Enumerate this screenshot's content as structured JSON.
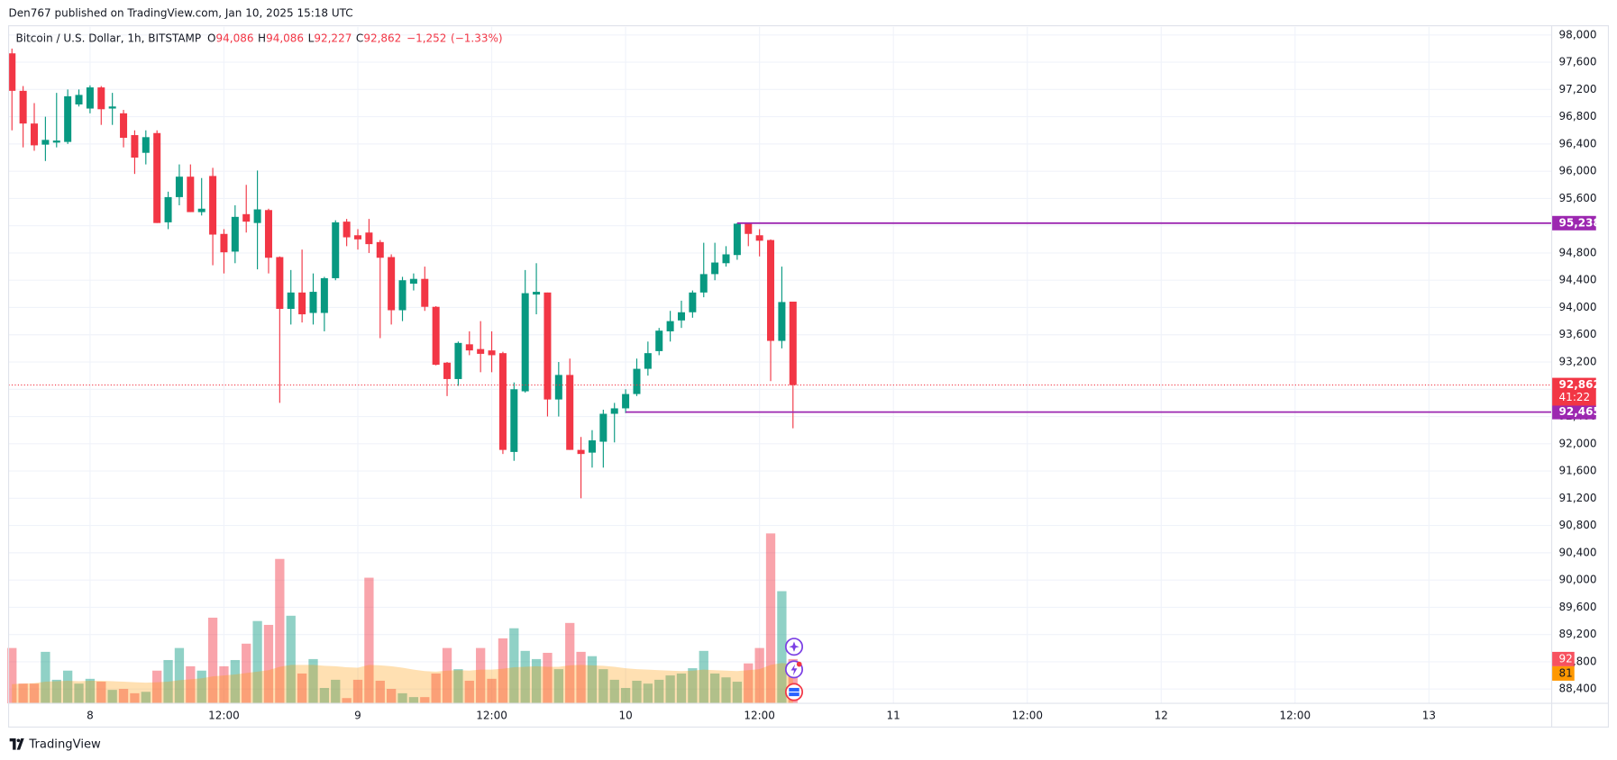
{
  "header": {
    "published": "Den767 published on TradingView.com, Jan 10, 2025 15:18 UTC"
  },
  "chart_data": {
    "type": "candlestick",
    "legend": {
      "symbol": "Bitcoin / U.S. Dollar, 1h, BITSTAMP",
      "fields": [
        {
          "key": "O",
          "value": 94086,
          "label": "94,086"
        },
        {
          "key": "H",
          "value": 94086,
          "label": "94,086"
        },
        {
          "key": "L",
          "value": 92227,
          "label": "92,227"
        },
        {
          "key": "C",
          "value": 92862,
          "label": "92,862"
        }
      ],
      "change": {
        "value": -1252,
        "label": "−1,252"
      },
      "change_pct": {
        "value": -1.33,
        "label": "(−1.33%)"
      }
    },
    "up_color": "#089981",
    "down_color": "#f23645",
    "open": [
      97730,
      97180,
      96700,
      96390,
      96420,
      96430,
      96980,
      96920,
      97230,
      96920,
      96850,
      96530,
      96270,
      96560,
      95250,
      95620,
      95920,
      95400,
      95930,
      95080,
      94820,
      95370,
      95240,
      95430,
      94740,
      93980,
      94220,
      93920,
      93920,
      94430,
      95260,
      95060,
      95100,
      94960,
      94740,
      93960,
      94350,
      94420,
      94010,
      93190,
      92950,
      93460,
      93390,
      93370,
      93330,
      91880,
      92770,
      94190,
      94220,
      92650,
      93010,
      91910,
      91870,
      92030,
      92440,
      92520,
      92730,
      93100,
      93360,
      93650,
      93810,
      93930,
      94220,
      94490,
      94650,
      94770,
      95230,
      95060,
      94990,
      93510,
      94086
    ],
    "high": [
      97800,
      97250,
      97000,
      96800,
      97150,
      97200,
      97200,
      97260,
      97250,
      97150,
      96900,
      96600,
      96600,
      96600,
      95700,
      96100,
      96100,
      95900,
      96050,
      95150,
      95500,
      95800,
      96010,
      95450,
      94750,
      94550,
      94850,
      94500,
      94450,
      95280,
      95300,
      95150,
      95300,
      94990,
      94780,
      94450,
      94500,
      94600,
      94020,
      93200,
      93500,
      93650,
      93800,
      93650,
      93350,
      92900,
      94550,
      94650,
      94220,
      93200,
      93250,
      92100,
      92200,
      92500,
      92600,
      92800,
      93250,
      93500,
      93700,
      93950,
      94100,
      94250,
      94950,
      94950,
      94900,
      95240,
      95240,
      95150,
      95000,
      94600,
      94086
    ],
    "low": [
      96600,
      96350,
      96300,
      96150,
      96350,
      96400,
      96950,
      96850,
      96680,
      96680,
      96350,
      95960,
      96100,
      95240,
      95150,
      95500,
      95400,
      95350,
      94620,
      94500,
      94650,
      95100,
      94560,
      94500,
      92600,
      93750,
      93780,
      93750,
      93650,
      94400,
      94900,
      94850,
      94800,
      93550,
      93750,
      93800,
      94250,
      93950,
      93150,
      92700,
      92850,
      93300,
      93050,
      93050,
      91850,
      91750,
      92750,
      93900,
      92400,
      92400,
      91910,
      91200,
      91650,
      91650,
      92020,
      92450,
      92700,
      93000,
      93300,
      93500,
      93700,
      93850,
      94150,
      94400,
      94600,
      94700,
      94900,
      94750,
      92920,
      93400,
      92227
    ],
    "close": [
      97180,
      96700,
      96380,
      96460,
      96450,
      97100,
      97120,
      97230,
      96910,
      96950,
      96490,
      96200,
      96500,
      95240,
      95620,
      95920,
      95400,
      95450,
      95070,
      94810,
      95330,
      95260,
      95440,
      94730,
      93980,
      94220,
      93900,
      94230,
      94430,
      95250,
      95030,
      95000,
      94930,
      94730,
      93960,
      94400,
      94420,
      94010,
      93160,
      92950,
      93480,
      93370,
      93320,
      93300,
      91910,
      92800,
      94210,
      94230,
      92650,
      93010,
      91910,
      91850,
      92050,
      92440,
      92520,
      92730,
      93100,
      93330,
      93660,
      93800,
      93930,
      94220,
      94490,
      94660,
      94780,
      95230,
      95080,
      94980,
      93510,
      94080,
      92862
    ],
    "volume": [
      115,
      41,
      41,
      107,
      49,
      68,
      41,
      51,
      45,
      28,
      30,
      21,
      24,
      68,
      90,
      115,
      77,
      68,
      178,
      77,
      90,
      124,
      171,
      163,
      300,
      182,
      62,
      92,
      32,
      49,
      11,
      49,
      261,
      47,
      30,
      21,
      13,
      13,
      62,
      115,
      71,
      47,
      115,
      51,
      135,
      156,
      109,
      92,
      105,
      71,
      167,
      107,
      98,
      71,
      49,
      32,
      47,
      41,
      49,
      58,
      62,
      73,
      109,
      62,
      54,
      45,
      83,
      115,
      353,
      233,
      92
    ],
    "volume_ma": [
      40,
      41,
      42,
      45,
      46,
      47,
      46,
      47,
      47,
      46,
      45,
      44,
      43,
      44,
      45,
      48,
      50,
      52,
      56,
      58,
      60,
      63,
      66,
      69,
      76,
      80,
      80,
      80,
      78,
      77,
      75,
      74,
      80,
      79,
      77,
      74,
      70,
      67,
      66,
      68,
      69,
      68,
      70,
      70,
      72,
      75,
      76,
      77,
      76,
      76,
      79,
      80,
      79,
      78,
      76,
      73,
      71,
      70,
      69,
      68,
      67,
      68,
      70,
      69,
      68,
      67,
      69,
      71,
      80,
      84,
      81
    ],
    "volume_color_up": "rgba(8,153,129,0.45)",
    "volume_color_down": "rgba(242,54,69,0.45)",
    "volume_ma_color": "rgba(255,152,0,0.3)",
    "volume_label": 92,
    "volume_ma_label": 81,
    "vlim": [
      0,
      400
    ],
    "xlim": [
      -0.3,
      138
    ],
    "xticks": [
      {
        "value": 7,
        "label": "8"
      },
      {
        "value": 19,
        "label": "12:00"
      },
      {
        "value": 31,
        "label": "9"
      },
      {
        "value": 43,
        "label": "12:00"
      },
      {
        "value": 55,
        "label": "10"
      },
      {
        "value": 67,
        "label": "12:00"
      },
      {
        "value": 79,
        "label": "11"
      },
      {
        "value": 91,
        "label": "12:00"
      },
      {
        "value": 103,
        "label": "12"
      },
      {
        "value": 115,
        "label": "12:00"
      },
      {
        "value": 127,
        "label": "13"
      }
    ],
    "ylim": [
      88190,
      98120
    ],
    "yticks": [
      {
        "value": 88400,
        "label": "88,400"
      },
      {
        "value": 88800,
        "label": "88,800"
      },
      {
        "value": 89200,
        "label": "89,200"
      },
      {
        "value": 89600,
        "label": "89,600"
      },
      {
        "value": 90000,
        "label": "90,000"
      },
      {
        "value": 90400,
        "label": "90,400"
      },
      {
        "value": 90800,
        "label": "90,800"
      },
      {
        "value": 91200,
        "label": "91,200"
      },
      {
        "value": 91600,
        "label": "91,600"
      },
      {
        "value": 92000,
        "label": "92,000"
      },
      {
        "value": 92400,
        "label": "92,400"
      },
      {
        "value": 92800,
        "label": "92,800"
      },
      {
        "value": 93200,
        "label": "93,200"
      },
      {
        "value": 93600,
        "label": "93,600"
      },
      {
        "value": 94000,
        "label": "94,000"
      },
      {
        "value": 94400,
        "label": "94,400"
      },
      {
        "value": 94800,
        "label": "94,800"
      },
      {
        "value": 95200,
        "label": "95,200"
      },
      {
        "value": 95600,
        "label": "95,600"
      },
      {
        "value": 96000,
        "label": "96,000"
      },
      {
        "value": 96400,
        "label": "96,400"
      },
      {
        "value": 96800,
        "label": "96,800"
      },
      {
        "value": 97200,
        "label": "97,200"
      },
      {
        "value": 97600,
        "label": "97,600"
      },
      {
        "value": 98000,
        "label": "98,000"
      }
    ],
    "levels": [
      {
        "value": 95238,
        "label": "95,238",
        "from": 65,
        "color": "#9c27b0"
      },
      {
        "value": 92465,
        "label": "92,465",
        "from": 55,
        "color": "#9c27b0"
      }
    ],
    "last_price": {
      "value": 92862,
      "label": "92,862",
      "color": "#f23645"
    },
    "countdown": "41:22",
    "grid": true
  },
  "footer": {
    "brand": "TradingView"
  }
}
